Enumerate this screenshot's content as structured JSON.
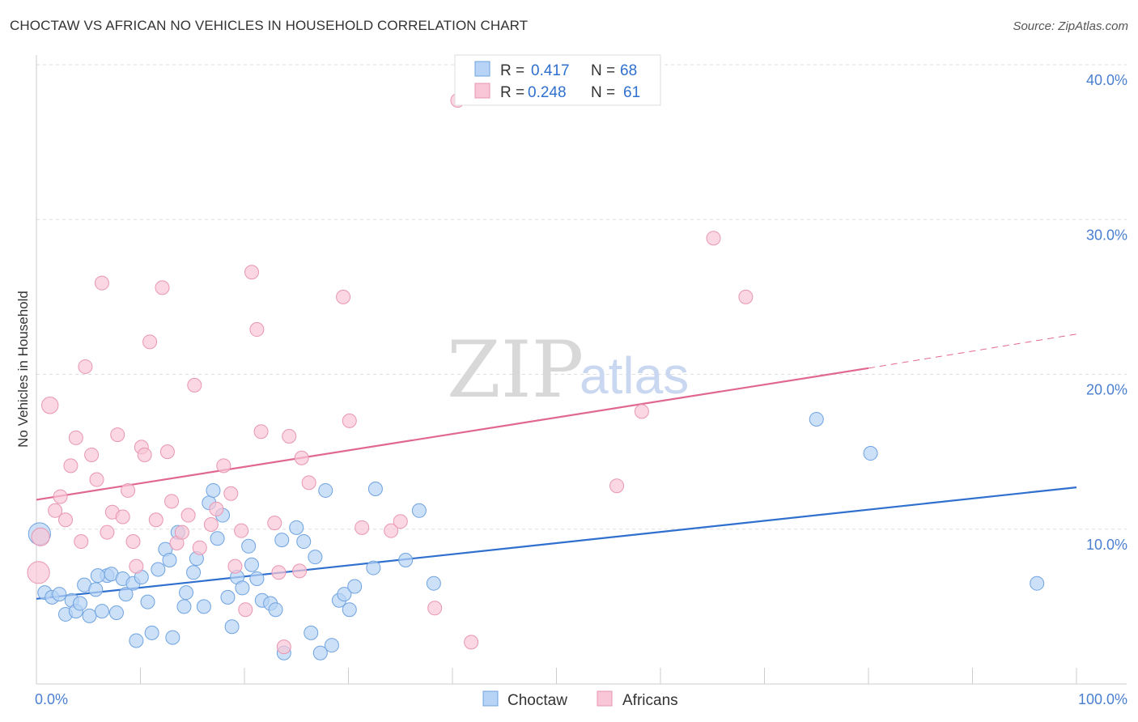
{
  "title": "CHOCTAW VS AFRICAN NO VEHICLES IN HOUSEHOLD CORRELATION CHART",
  "source": "Source: ZipAtlas.com",
  "watermark": {
    "zip": "ZIP",
    "atlas": "atlas"
  },
  "colors": {
    "choctaw_fill": "#b7d3f5",
    "choctaw_stroke": "#6fa3e0",
    "choctaw_line": "#2f6fce",
    "africans_fill": "#f8c6d6",
    "africans_stroke": "#e896b1",
    "africans_line": "#e06890",
    "grid": "#dddddd",
    "axis_text": "#4a7fd0"
  },
  "legend": {
    "rows": [
      {
        "r_label": "R =",
        "r_value": "0.417",
        "n_label": "N =",
        "n_value": "68"
      },
      {
        "r_label": "R =",
        "r_value": "0.248",
        "n_label": "N =",
        "n_value": "61"
      }
    ]
  },
  "bottom_legend": [
    "Choctaw",
    "Africans"
  ],
  "chart_data": {
    "type": "scatter",
    "title": "CHOCTAW VS AFRICAN NO VEHICLES IN HOUSEHOLD CORRELATION CHART",
    "xlabel": "",
    "ylabel": "No Vehicles in Household",
    "xlim": [
      0,
      100
    ],
    "ylim": [
      0,
      40
    ],
    "x_ticks": [
      "0.0%",
      "100.0%"
    ],
    "y_ticks": [
      "10.0%",
      "20.0%",
      "30.0%",
      "40.0%"
    ],
    "grid": true,
    "legend_position": "top-center",
    "series": [
      {
        "name": "Choctaw",
        "R": 0.417,
        "N": 68,
        "trend": {
          "x": [
            0,
            100
          ],
          "y": [
            5.5,
            12.7
          ]
        },
        "points": [
          [
            0.3,
            9.7,
            1.6
          ],
          [
            0.8,
            5.9,
            1
          ],
          [
            1.5,
            5.6,
            1
          ],
          [
            2.2,
            5.8,
            1
          ],
          [
            2.8,
            4.5,
            1
          ],
          [
            3.4,
            5.4,
            1
          ],
          [
            3.8,
            4.7,
            1
          ],
          [
            4.2,
            5.2,
            1
          ],
          [
            4.6,
            6.4,
            1
          ],
          [
            5.1,
            4.4,
            1
          ],
          [
            5.7,
            6.1,
            1
          ],
          [
            6.3,
            4.7,
            1
          ],
          [
            6.8,
            7.0,
            1
          ],
          [
            7.2,
            7.1,
            1
          ],
          [
            7.7,
            4.6,
            1
          ],
          [
            8.3,
            6.8,
            1
          ],
          [
            8.6,
            5.8,
            1
          ],
          [
            9.3,
            6.5,
            1
          ],
          [
            9.6,
            2.8,
            1
          ],
          [
            10.1,
            6.9,
            1
          ],
          [
            10.7,
            5.3,
            1
          ],
          [
            11.1,
            3.3,
            1
          ],
          [
            11.7,
            7.4,
            1
          ],
          [
            12.4,
            8.7,
            1
          ],
          [
            12.8,
            8.0,
            1
          ],
          [
            13.1,
            3.0,
            1
          ],
          [
            13.6,
            9.8,
            1
          ],
          [
            14.2,
            5.0,
            1
          ],
          [
            14.4,
            5.9,
            1
          ],
          [
            15.1,
            7.2,
            1
          ],
          [
            15.4,
            8.1,
            1
          ],
          [
            16.1,
            5.0,
            1
          ],
          [
            16.6,
            11.7,
            1
          ],
          [
            17.0,
            12.5,
            1
          ],
          [
            17.4,
            9.4,
            1
          ],
          [
            17.9,
            10.9,
            1
          ],
          [
            18.4,
            5.6,
            1
          ],
          [
            18.8,
            3.7,
            1
          ],
          [
            19.3,
            6.9,
            1
          ],
          [
            19.8,
            6.2,
            1
          ],
          [
            20.4,
            8.9,
            1
          ],
          [
            20.7,
            7.7,
            1
          ],
          [
            21.2,
            6.8,
            1
          ],
          [
            21.7,
            5.4,
            1
          ],
          [
            22.5,
            5.2,
            1
          ],
          [
            23.0,
            4.8,
            1
          ],
          [
            23.6,
            9.3,
            1
          ],
          [
            23.8,
            2.0,
            1
          ],
          [
            25.0,
            10.1,
            1
          ],
          [
            25.7,
            9.2,
            1
          ],
          [
            26.4,
            3.3,
            1
          ],
          [
            26.8,
            8.2,
            1
          ],
          [
            27.3,
            2.0,
            1
          ],
          [
            27.8,
            12.5,
            1
          ],
          [
            28.4,
            2.5,
            1
          ],
          [
            29.1,
            5.4,
            1
          ],
          [
            29.6,
            5.8,
            1
          ],
          [
            30.1,
            4.8,
            1
          ],
          [
            30.6,
            6.3,
            1
          ],
          [
            32.4,
            7.5,
            1
          ],
          [
            32.6,
            12.6,
            1
          ],
          [
            35.5,
            8.0,
            1
          ],
          [
            36.8,
            11.2,
            1
          ],
          [
            38.2,
            6.5,
            1
          ],
          [
            75.0,
            17.1,
            1
          ],
          [
            80.2,
            14.9,
            1
          ],
          [
            96.2,
            6.5,
            1
          ],
          [
            5.9,
            7.0,
            1
          ]
        ]
      },
      {
        "name": "Africans",
        "R": 0.248,
        "N": 61,
        "trend": {
          "x": [
            0,
            80
          ],
          "y": [
            11.9,
            20.4
          ]
        },
        "trend_dashed": {
          "x": [
            80,
            100
          ],
          "y": [
            20.4,
            22.6
          ]
        },
        "points": [
          [
            0.2,
            7.2,
            1.6
          ],
          [
            0.4,
            9.5,
            1.3
          ],
          [
            1.3,
            18.0,
            1.2
          ],
          [
            1.8,
            11.2,
            1
          ],
          [
            2.3,
            12.1,
            1
          ],
          [
            2.8,
            10.6,
            1
          ],
          [
            3.3,
            14.1,
            1
          ],
          [
            3.8,
            15.9,
            1
          ],
          [
            4.3,
            9.2,
            1
          ],
          [
            4.7,
            20.5,
            1
          ],
          [
            5.3,
            14.8,
            1
          ],
          [
            5.8,
            13.2,
            1
          ],
          [
            6.3,
            25.9,
            1
          ],
          [
            6.8,
            9.8,
            1
          ],
          [
            7.3,
            11.1,
            1
          ],
          [
            7.8,
            16.1,
            1
          ],
          [
            8.3,
            10.8,
            1
          ],
          [
            8.8,
            12.5,
            1
          ],
          [
            9.3,
            9.2,
            1
          ],
          [
            9.6,
            7.6,
            1
          ],
          [
            10.1,
            15.3,
            1
          ],
          [
            10.4,
            14.8,
            1
          ],
          [
            10.9,
            22.1,
            1
          ],
          [
            11.5,
            10.6,
            1
          ],
          [
            12.1,
            25.6,
            1
          ],
          [
            12.6,
            15.0,
            1
          ],
          [
            13.0,
            11.8,
            1
          ],
          [
            13.5,
            9.1,
            1
          ],
          [
            14.0,
            9.8,
            1
          ],
          [
            14.6,
            10.9,
            1
          ],
          [
            15.2,
            19.3,
            1
          ],
          [
            15.7,
            8.8,
            1
          ],
          [
            16.8,
            10.3,
            1
          ],
          [
            17.3,
            11.3,
            1
          ],
          [
            18.0,
            14.1,
            1
          ],
          [
            18.7,
            12.3,
            1
          ],
          [
            19.1,
            7.6,
            1
          ],
          [
            19.7,
            9.9,
            1
          ],
          [
            20.1,
            4.8,
            1
          ],
          [
            20.7,
            26.6,
            1
          ],
          [
            21.2,
            22.9,
            1
          ],
          [
            21.6,
            16.3,
            1
          ],
          [
            22.9,
            10.4,
            1
          ],
          [
            23.3,
            7.2,
            1
          ],
          [
            23.8,
            2.4,
            1
          ],
          [
            24.3,
            16.0,
            1
          ],
          [
            25.5,
            14.6,
            1
          ],
          [
            26.2,
            13.0,
            1
          ],
          [
            29.5,
            25.0,
            1
          ],
          [
            30.1,
            17.0,
            1
          ],
          [
            31.3,
            10.1,
            1
          ],
          [
            34.1,
            9.9,
            1
          ],
          [
            35.0,
            10.5,
            1
          ],
          [
            38.3,
            4.9,
            1
          ],
          [
            40.5,
            37.7,
            1
          ],
          [
            41.8,
            2.7,
            1
          ],
          [
            55.8,
            12.8,
            1
          ],
          [
            58.2,
            17.6,
            1
          ],
          [
            65.1,
            28.8,
            1
          ],
          [
            68.2,
            25.0,
            1
          ],
          [
            25.3,
            7.3,
            1
          ]
        ]
      }
    ]
  }
}
